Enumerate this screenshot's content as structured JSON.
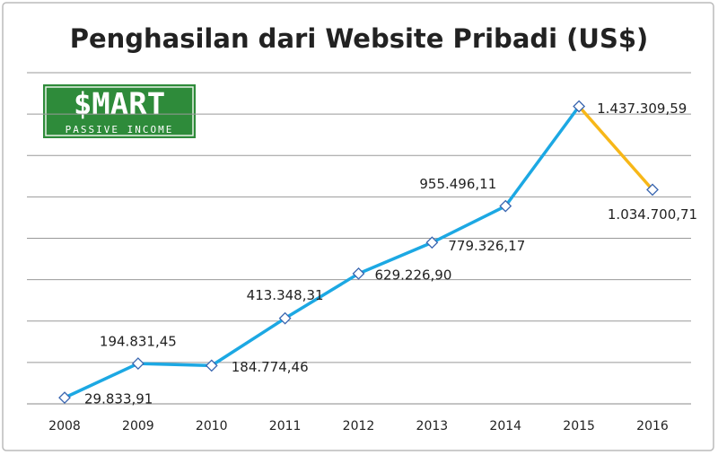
{
  "chart_data": {
    "type": "line",
    "title": "Penghasilan dari Website Pribadi (US$)",
    "logo": {
      "title": "$MART",
      "subtitle": "PASSIVE INCOME"
    },
    "categories": [
      "2008",
      "2009",
      "2010",
      "2011",
      "2012",
      "2013",
      "2014",
      "2015",
      "2016"
    ],
    "series": [
      {
        "color": "#1ca8e3",
        "last_segment_color": "#f7b718",
        "values": [
          29833.91,
          194831.45,
          184774.46,
          413348.31,
          629226.9,
          779326.17,
          955496.11,
          1437309.59,
          1034700.71
        ],
        "value_labels": [
          "29.833,91",
          "194.831,45",
          "184.774,46",
          "413.348,31",
          "629.226,90",
          "779.326,17",
          "955.496,11",
          "1.437.309,59",
          "1.034.700,71"
        ]
      }
    ],
    "ylim": [
      0,
      1600000
    ],
    "yticks": [
      200000,
      400000,
      600000,
      800000,
      1000000,
      1200000,
      1400000,
      1600000
    ],
    "grid": true
  }
}
